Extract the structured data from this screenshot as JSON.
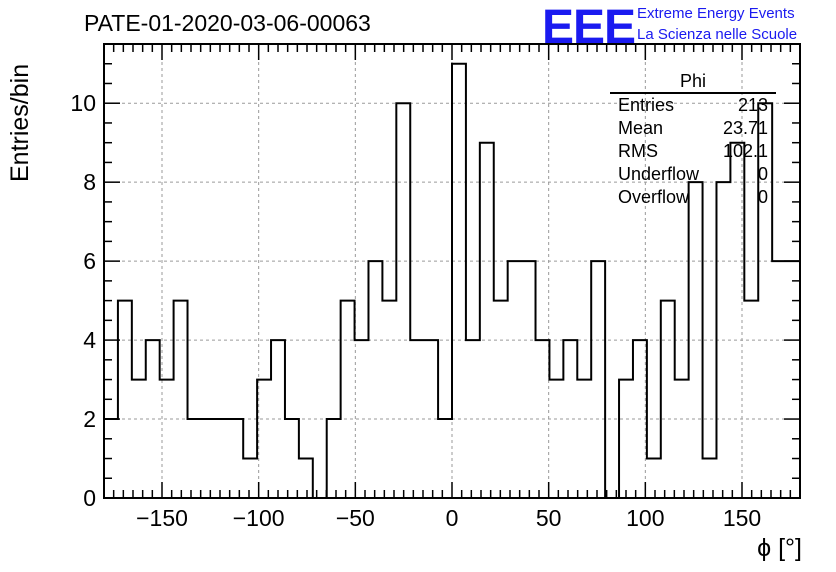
{
  "title": "PATE-01-2020-03-06-00063",
  "logo": {
    "mark": "EEE",
    "line1": "Extreme Energy Events",
    "line2": "La Scienza nelle Scuole",
    "color": "#1a1af0"
  },
  "stats": {
    "name": "Phi",
    "rows": [
      {
        "label": "Entries",
        "value": "213"
      },
      {
        "label": "Mean",
        "value": "23.71"
      },
      {
        "label": "RMS",
        "value": "102.1"
      },
      {
        "label": "Underflow",
        "value": "0"
      },
      {
        "label": "Overflow",
        "value": "0"
      }
    ]
  },
  "chart_data": {
    "type": "bar",
    "histogram": true,
    "title": "PATE-01-2020-03-06-00063",
    "xlabel": "ϕ [°]",
    "ylabel": "Entries/bin",
    "xlim": [
      -180,
      180
    ],
    "ylim": [
      0,
      11.5
    ],
    "bin_width": 7.2,
    "x_ticks": [
      -150,
      -100,
      -50,
      0,
      50,
      100,
      150
    ],
    "x_tick_labels": [
      "−150",
      "−100",
      "−50",
      "0",
      "50",
      "100",
      "150"
    ],
    "y_ticks": [
      0,
      2,
      4,
      6,
      8,
      10
    ],
    "y_tick_labels": [
      "0",
      "2",
      "4",
      "6",
      "8",
      "10"
    ],
    "grid": true,
    "values": [
      2,
      5,
      3,
      4,
      3,
      5,
      2,
      2,
      2,
      2,
      1,
      3,
      4,
      2,
      1,
      0,
      2,
      5,
      4,
      6,
      5,
      10,
      4,
      4,
      2,
      11,
      4,
      9,
      5,
      6,
      6,
      4,
      3,
      4,
      3,
      6,
      0,
      3,
      4,
      1,
      5,
      3,
      8,
      1,
      8,
      9,
      5,
      10,
      6,
      6
    ]
  }
}
